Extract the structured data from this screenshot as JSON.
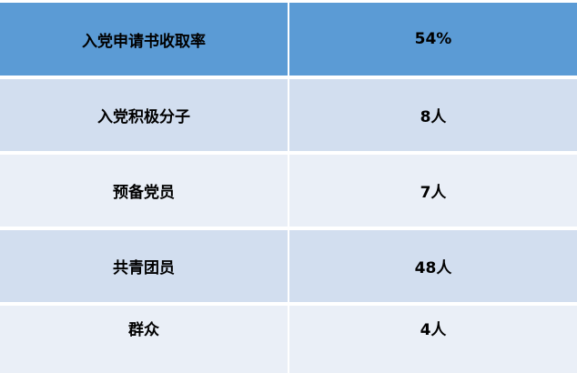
{
  "table": {
    "header": {
      "label": "入党申请书收取率",
      "value": "54%"
    },
    "rows": [
      {
        "label": "入党积极分子",
        "value": "8人"
      },
      {
        "label": "预备党员",
        "value": "7人"
      },
      {
        "label": "共青团员",
        "value": "48人"
      },
      {
        "label": "群众",
        "value": "4人"
      }
    ]
  },
  "colors": {
    "header": "#5B9BD5",
    "row_odd": "#D2DEEF",
    "row_even": "#EAEFF7"
  }
}
